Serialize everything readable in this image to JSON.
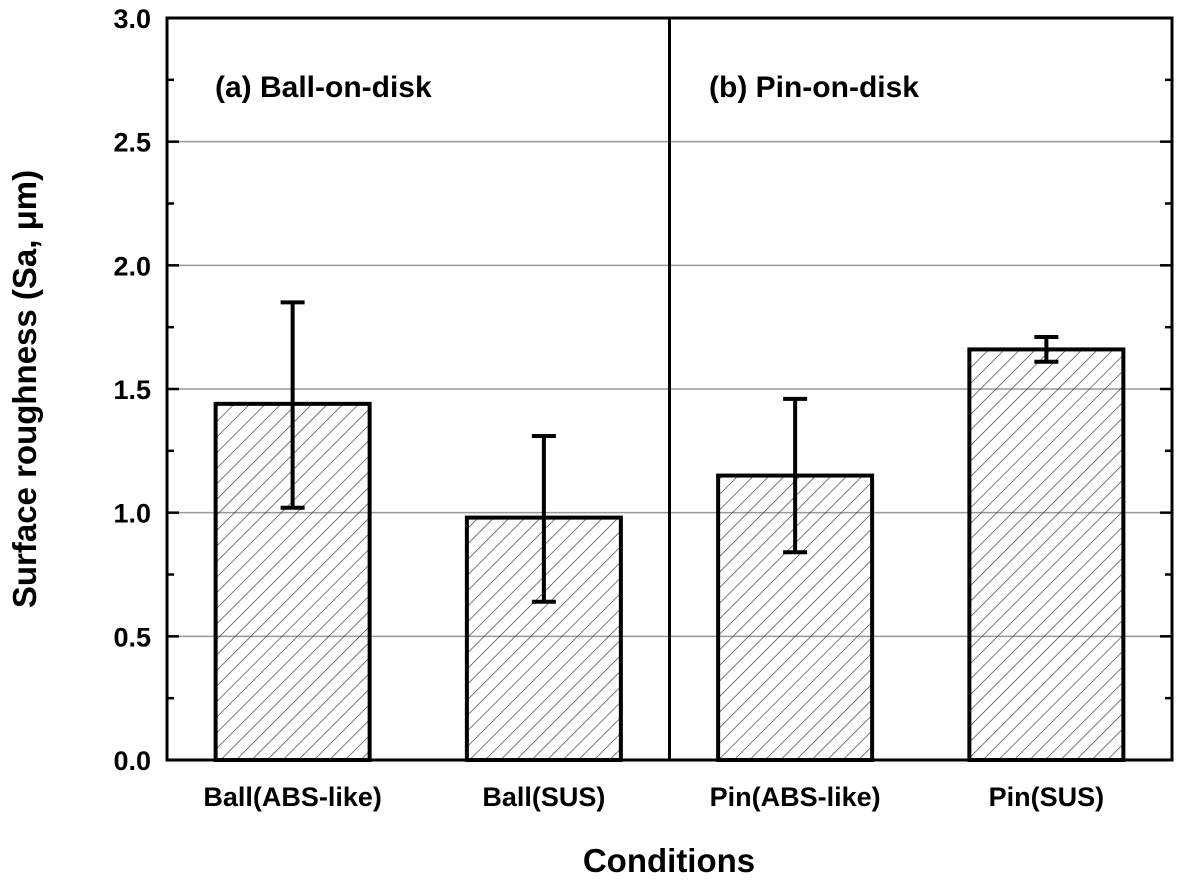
{
  "chart_data": {
    "type": "bar",
    "categories": [
      "Ball(ABS-like)",
      "Ball(SUS)",
      "Pin(ABS-like)",
      "Pin(SUS)"
    ],
    "values": [
      1.44,
      0.98,
      1.15,
      1.66
    ],
    "error_low": [
      1.02,
      0.64,
      0.84,
      1.61
    ],
    "error_high": [
      1.85,
      1.31,
      1.46,
      1.71
    ],
    "xlabel": "Conditions",
    "ylabel": "Surface roughness (Sa, μm)",
    "ylim": [
      0,
      3.0
    ],
    "yticks": [
      "0.0",
      "0.5",
      "1.0",
      "1.5",
      "2.0",
      "2.5",
      "3.0"
    ],
    "grid": "horizontal",
    "panels": [
      {
        "label": "(a) Ball-on-disk"
      },
      {
        "label": "(b) Pin-on-disk"
      }
    ],
    "bar_fill": "hatched",
    "colors": {
      "bar_edge": "#000000",
      "hatch": "#333333",
      "grid": "#999999"
    }
  }
}
